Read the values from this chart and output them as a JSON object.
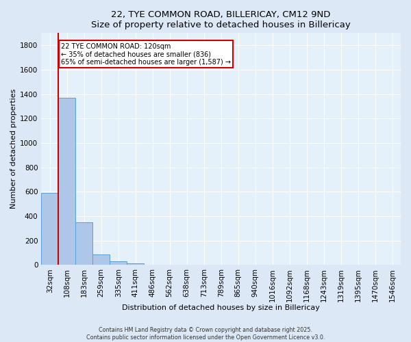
{
  "title": "22, TYE COMMON ROAD, BILLERICAY, CM12 9ND",
  "subtitle": "Size of property relative to detached houses in Billericay",
  "xlabel": "Distribution of detached houses by size in Billericay",
  "ylabel": "Number of detached properties",
  "bar_labels": [
    "32sqm",
    "108sqm",
    "183sqm",
    "259sqm",
    "335sqm",
    "411sqm",
    "486sqm",
    "562sqm",
    "638sqm",
    "713sqm",
    "789sqm",
    "865sqm",
    "940sqm",
    "1016sqm",
    "1092sqm",
    "1168sqm",
    "1243sqm",
    "1319sqm",
    "1395sqm",
    "1470sqm",
    "1546sqm"
  ],
  "bar_values": [
    590,
    1370,
    350,
    87,
    28,
    14,
    0,
    0,
    0,
    0,
    0,
    0,
    0,
    0,
    0,
    0,
    0,
    0,
    0,
    0,
    0
  ],
  "bar_color": "#aec6e8",
  "bar_edge_color": "#5a9fd4",
  "ylim": [
    0,
    1900
  ],
  "yticks": [
    0,
    200,
    400,
    600,
    800,
    1000,
    1200,
    1400,
    1600,
    1800
  ],
  "property_line_color": "#cc0000",
  "annotation_text": "22 TYE COMMON ROAD: 120sqm\n← 35% of detached houses are smaller (836)\n65% of semi-detached houses are larger (1,587) →",
  "annotation_box_color": "#ffffff",
  "annotation_box_edge": "#cc0000",
  "footnote1": "Contains HM Land Registry data © Crown copyright and database right 2025.",
  "footnote2": "Contains public sector information licensed under the Open Government Licence v3.0.",
  "bg_color": "#dce8f5",
  "plot_bg_color": "#e4f0fa"
}
